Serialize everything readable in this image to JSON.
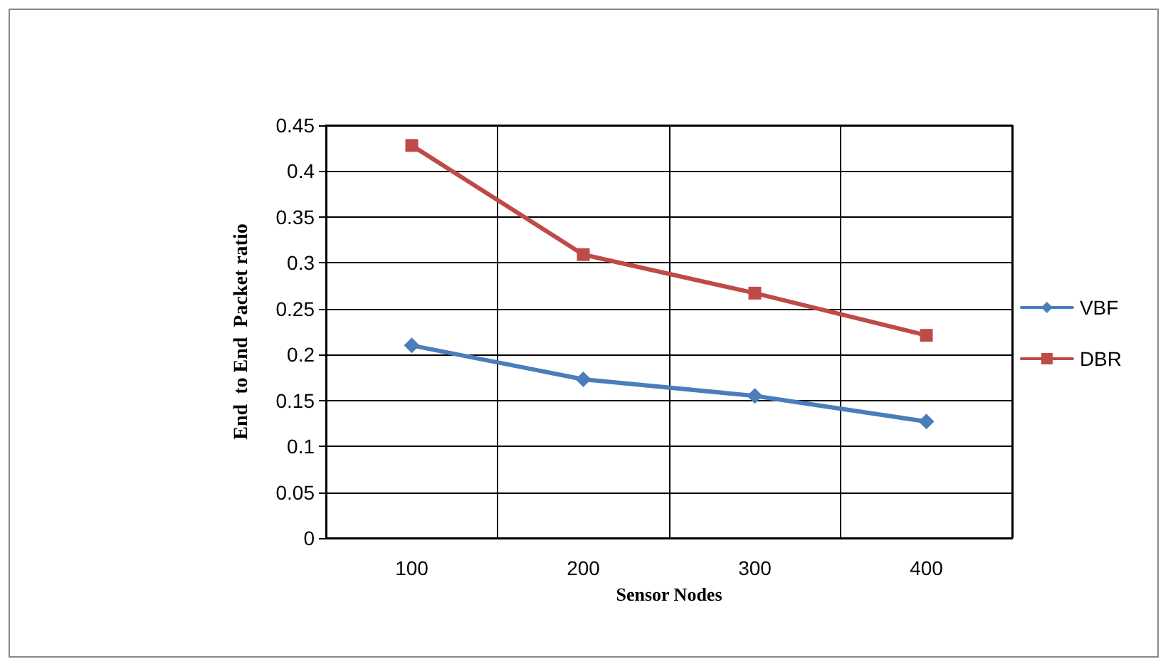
{
  "chart_data": {
    "type": "line",
    "xlabel": "Sensor Nodes",
    "ylabel": "End  to End  Packet ratio",
    "categories": [
      "100",
      "200",
      "300",
      "400"
    ],
    "series": [
      {
        "name": "VBF",
        "color": "#4a7ebb",
        "marker": "diamond",
        "values": [
          0.21,
          0.173,
          0.155,
          0.127
        ]
      },
      {
        "name": "DBR",
        "color": "#be4b48",
        "marker": "square",
        "values": [
          0.428,
          0.309,
          0.267,
          0.221
        ]
      }
    ],
    "ylim": [
      0,
      0.45
    ],
    "yticks": [
      0,
      0.05,
      0.1,
      0.15,
      0.2,
      0.25,
      0.3,
      0.35,
      0.4,
      0.45
    ],
    "grid": true,
    "legend": "right",
    "line_style": "solid"
  }
}
